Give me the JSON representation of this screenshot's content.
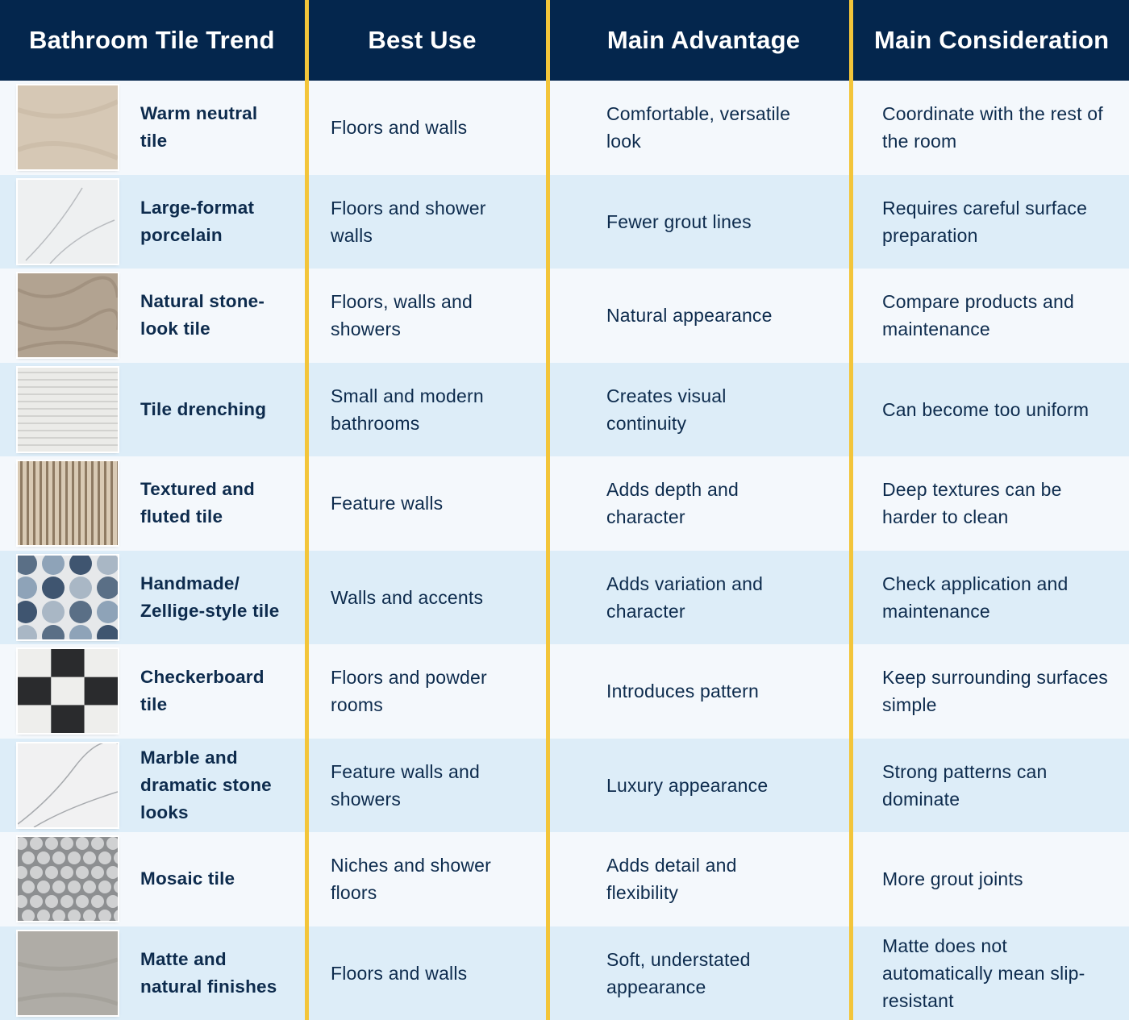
{
  "header": {
    "columns": [
      "Bathroom Tile Trend",
      "Best Use",
      "Main Advantage",
      "Main Consideration"
    ]
  },
  "table": {
    "rows": [
      [
        "Warm neutral tile",
        "Floors and walls",
        "Comfortable, versatile look",
        "Coordinate with the rest of the room"
      ],
      [
        "Large-format porcelain",
        "Floors and shower walls",
        "Fewer grout lines",
        "Requires careful surface preparation"
      ],
      [
        "Natural stone-look tile",
        "Floors, walls and showers",
        "Natural appearance",
        "Compare products and maintenance"
      ],
      [
        "Tile drenching",
        "Small and modern bathrooms",
        "Creates visual continuity",
        "Can become too uniform"
      ],
      [
        "Textured and fluted tile",
        "Feature walls",
        "Adds depth and character",
        "Deep textures can be harder to clean"
      ],
      [
        "Handmade/ Zellige-style tile",
        "Walls and accents",
        "Adds variation and character",
        "Check application and maintenance"
      ],
      [
        "Checkerboard tile",
        "Floors and powder rooms",
        "Introduces pattern",
        "Keep surrounding surfaces simple"
      ],
      [
        "Marble and dramatic stone looks",
        "Feature walls and showers",
        "Luxury appearance",
        "Strong patterns can dominate"
      ],
      [
        "Mosaic tile",
        "Niches and shower floors",
        "Adds detail and flexibility",
        "More grout joints"
      ],
      [
        "Matte and natural finishes",
        "Floors and walls",
        "Soft, understated appearance",
        "Matte does not automatically mean slip-resistant"
      ]
    ]
  }
}
